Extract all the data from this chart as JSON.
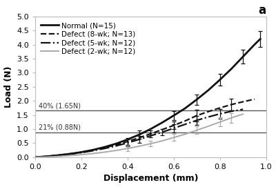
{
  "title": "a",
  "xlabel": "Displacement (mm)",
  "ylabel": "Load (N)",
  "xlim": [
    0,
    1.0
  ],
  "ylim": [
    0,
    5.0
  ],
  "yticks": [
    0,
    0.5,
    1.0,
    1.5,
    2.0,
    2.5,
    3.0,
    3.5,
    4.0,
    4.5,
    5.0
  ],
  "xticks": [
    0,
    0.2,
    0.4,
    0.6,
    0.8,
    1.0
  ],
  "hline1_y": 1.65,
  "hline1_label": "40% (1.65N)",
  "hline2_y": 0.88,
  "hline2_label": "21% (0.88N)",
  "hline_color": "#555555",
  "normal_x": [
    0.0,
    0.05,
    0.1,
    0.15,
    0.2,
    0.25,
    0.3,
    0.35,
    0.4,
    0.45,
    0.5,
    0.55,
    0.6,
    0.65,
    0.7,
    0.75,
    0.8,
    0.85,
    0.9,
    0.95,
    0.975
  ],
  "normal_y": [
    0.0,
    0.03,
    0.07,
    0.12,
    0.18,
    0.26,
    0.36,
    0.48,
    0.63,
    0.8,
    1.0,
    1.23,
    1.48,
    1.74,
    2.05,
    2.38,
    2.75,
    3.14,
    3.57,
    4.0,
    4.2
  ],
  "normal_yerr": [
    0.0,
    0.0,
    0.0,
    0.0,
    0.0,
    0.0,
    0.0,
    0.0,
    0.0,
    0.14,
    0.0,
    0.0,
    0.15,
    0.0,
    0.18,
    0.0,
    0.2,
    0.0,
    0.24,
    0.0,
    0.28
  ],
  "defect8_x": [
    0.0,
    0.05,
    0.1,
    0.15,
    0.2,
    0.25,
    0.3,
    0.35,
    0.4,
    0.45,
    0.5,
    0.55,
    0.6,
    0.65,
    0.7,
    0.75,
    0.8,
    0.85,
    0.9,
    0.95
  ],
  "defect8_y": [
    0.0,
    0.03,
    0.07,
    0.12,
    0.18,
    0.25,
    0.34,
    0.44,
    0.56,
    0.69,
    0.83,
    0.98,
    1.13,
    1.29,
    1.48,
    1.62,
    1.75,
    1.87,
    1.97,
    2.06
  ],
  "defect8_yerr": [
    0.0,
    0.0,
    0.0,
    0.0,
    0.0,
    0.0,
    0.0,
    0.0,
    0.12,
    0.0,
    0.12,
    0.0,
    0.14,
    0.0,
    0.2,
    0.0,
    0.0,
    0.22,
    0.0,
    0.0
  ],
  "defect5_x": [
    0.0,
    0.05,
    0.1,
    0.15,
    0.2,
    0.25,
    0.3,
    0.35,
    0.4,
    0.45,
    0.5,
    0.55,
    0.6,
    0.65,
    0.7,
    0.75,
    0.8,
    0.85,
    0.9
  ],
  "defect5_y": [
    0.0,
    0.03,
    0.07,
    0.11,
    0.16,
    0.23,
    0.31,
    0.4,
    0.51,
    0.63,
    0.76,
    0.89,
    1.03,
    1.17,
    1.31,
    1.43,
    1.54,
    1.63,
    1.7
  ],
  "defect5_yerr": [
    0.0,
    0.0,
    0.0,
    0.0,
    0.0,
    0.0,
    0.0,
    0.0,
    0.12,
    0.12,
    0.0,
    0.12,
    0.14,
    0.0,
    0.15,
    0.0,
    0.16,
    0.0,
    0.0
  ],
  "defect2_x": [
    0.0,
    0.05,
    0.1,
    0.15,
    0.2,
    0.25,
    0.3,
    0.35,
    0.4,
    0.45,
    0.5,
    0.55,
    0.6,
    0.65,
    0.7,
    0.75,
    0.8,
    0.85,
    0.9
  ],
  "defect2_y": [
    0.0,
    0.01,
    0.03,
    0.06,
    0.09,
    0.13,
    0.18,
    0.24,
    0.31,
    0.39,
    0.48,
    0.58,
    0.7,
    0.82,
    0.96,
    1.1,
    1.25,
    1.4,
    1.53
  ],
  "defect2_yerr": [
    0.0,
    0.0,
    0.0,
    0.0,
    0.0,
    0.0,
    0.0,
    0.0,
    0.1,
    0.0,
    0.1,
    0.0,
    0.12,
    0.0,
    0.14,
    0.0,
    0.16,
    0.17,
    0.0
  ],
  "legend_entries": [
    {
      "label": "Normal (N=15)",
      "color": "#111111",
      "linestyle": "solid",
      "linewidth": 2.0
    },
    {
      "label": "Defect (8-wk; N=13)",
      "color": "#111111",
      "linestyle": "dashed",
      "linewidth": 1.6
    },
    {
      "label": "Defect (5-wk; N=12)",
      "color": "#111111",
      "linestyle": "dashdot",
      "linewidth": 1.6
    },
    {
      "label": "Defect (2-wk; N=12)",
      "color": "#aaaaaa",
      "linestyle": "solid",
      "linewidth": 1.4
    }
  ],
  "bg_color": "#ffffff",
  "title_fontsize": 12,
  "label_fontsize": 9,
  "tick_fontsize": 8,
  "legend_fontsize": 7.5
}
